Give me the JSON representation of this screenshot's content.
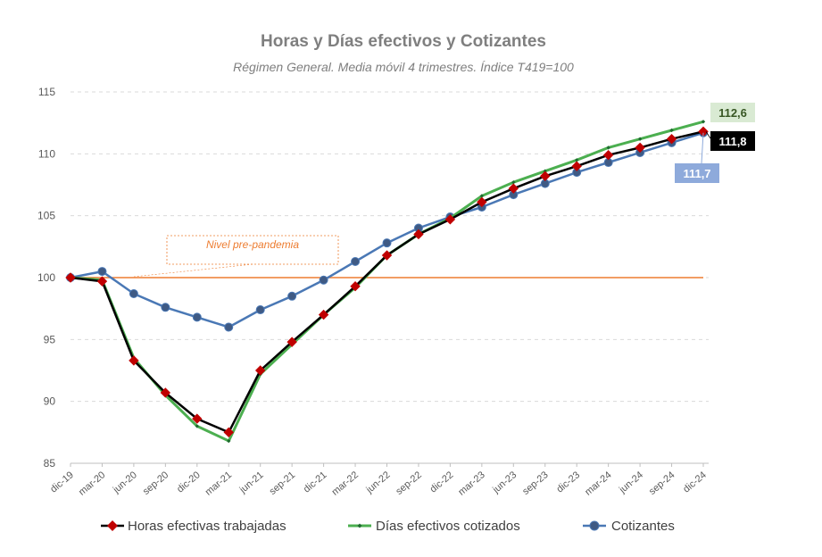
{
  "chart_data": {
    "type": "line",
    "title": "Horas y Días efectivos y Cotizantes",
    "subtitle": "Régimen General. Media móvil 4 trimestres. Índice T419=100",
    "ylim": [
      85,
      115
    ],
    "yticks": [
      85,
      90,
      95,
      100,
      105,
      110,
      115
    ],
    "grid": "horizontal-dashed",
    "legend_position": "bottom",
    "categories": [
      "dic-19",
      "mar-20",
      "jun-20",
      "sep-20",
      "dic-20",
      "mar-21",
      "jun-21",
      "sep-21",
      "dic-21",
      "mar-22",
      "jun-22",
      "sep-22",
      "dic-22",
      "mar-23",
      "jun-23",
      "sep-23",
      "dic-23",
      "mar-24",
      "jun-24",
      "sep-24",
      "dic-24"
    ],
    "series": [
      {
        "name": "Horas efectivas trabajadas",
        "color": "#000000",
        "marker_color": "#c00000",
        "marker": "diamond",
        "values": [
          100.0,
          99.7,
          93.3,
          90.7,
          88.6,
          87.5,
          92.5,
          94.8,
          97.0,
          99.3,
          101.8,
          103.5,
          104.7,
          106.1,
          107.2,
          108.2,
          109.0,
          109.9,
          110.5,
          111.2,
          111.8
        ]
      },
      {
        "name": "Días efectivos cotizados",
        "color": "#4caf50",
        "marker_color": "#1e6b2f",
        "marker": "small-diamond",
        "values": [
          100.0,
          99.8,
          93.5,
          90.5,
          88.0,
          86.8,
          92.2,
          94.6,
          97.0,
          99.2,
          101.8,
          103.5,
          104.8,
          106.6,
          107.7,
          108.6,
          109.5,
          110.5,
          111.2,
          111.9,
          112.6
        ]
      },
      {
        "name": "Cotizantes",
        "color": "#4a78b5",
        "marker_color": "#3f5a84",
        "marker": "circle",
        "values": [
          100.0,
          100.5,
          98.7,
          97.6,
          96.8,
          96.0,
          97.4,
          98.5,
          99.8,
          101.3,
          102.8,
          104.0,
          104.9,
          105.7,
          106.7,
          107.6,
          108.5,
          109.3,
          110.1,
          110.9,
          111.7
        ]
      }
    ],
    "reference_line": {
      "value": 100,
      "color": "#ed7d31"
    },
    "annotations": [
      {
        "text": "Nivel pre-pandemia",
        "color": "#ed7d31"
      }
    ],
    "end_labels": [
      {
        "text": "112,6",
        "bg": "#d9ead3",
        "fg": "#375623"
      },
      {
        "text": "111,8",
        "bg": "#000000",
        "fg": "#ffffff"
      },
      {
        "text": "111,7",
        "bg": "#8eaadb",
        "fg": "#ffffff"
      }
    ]
  }
}
